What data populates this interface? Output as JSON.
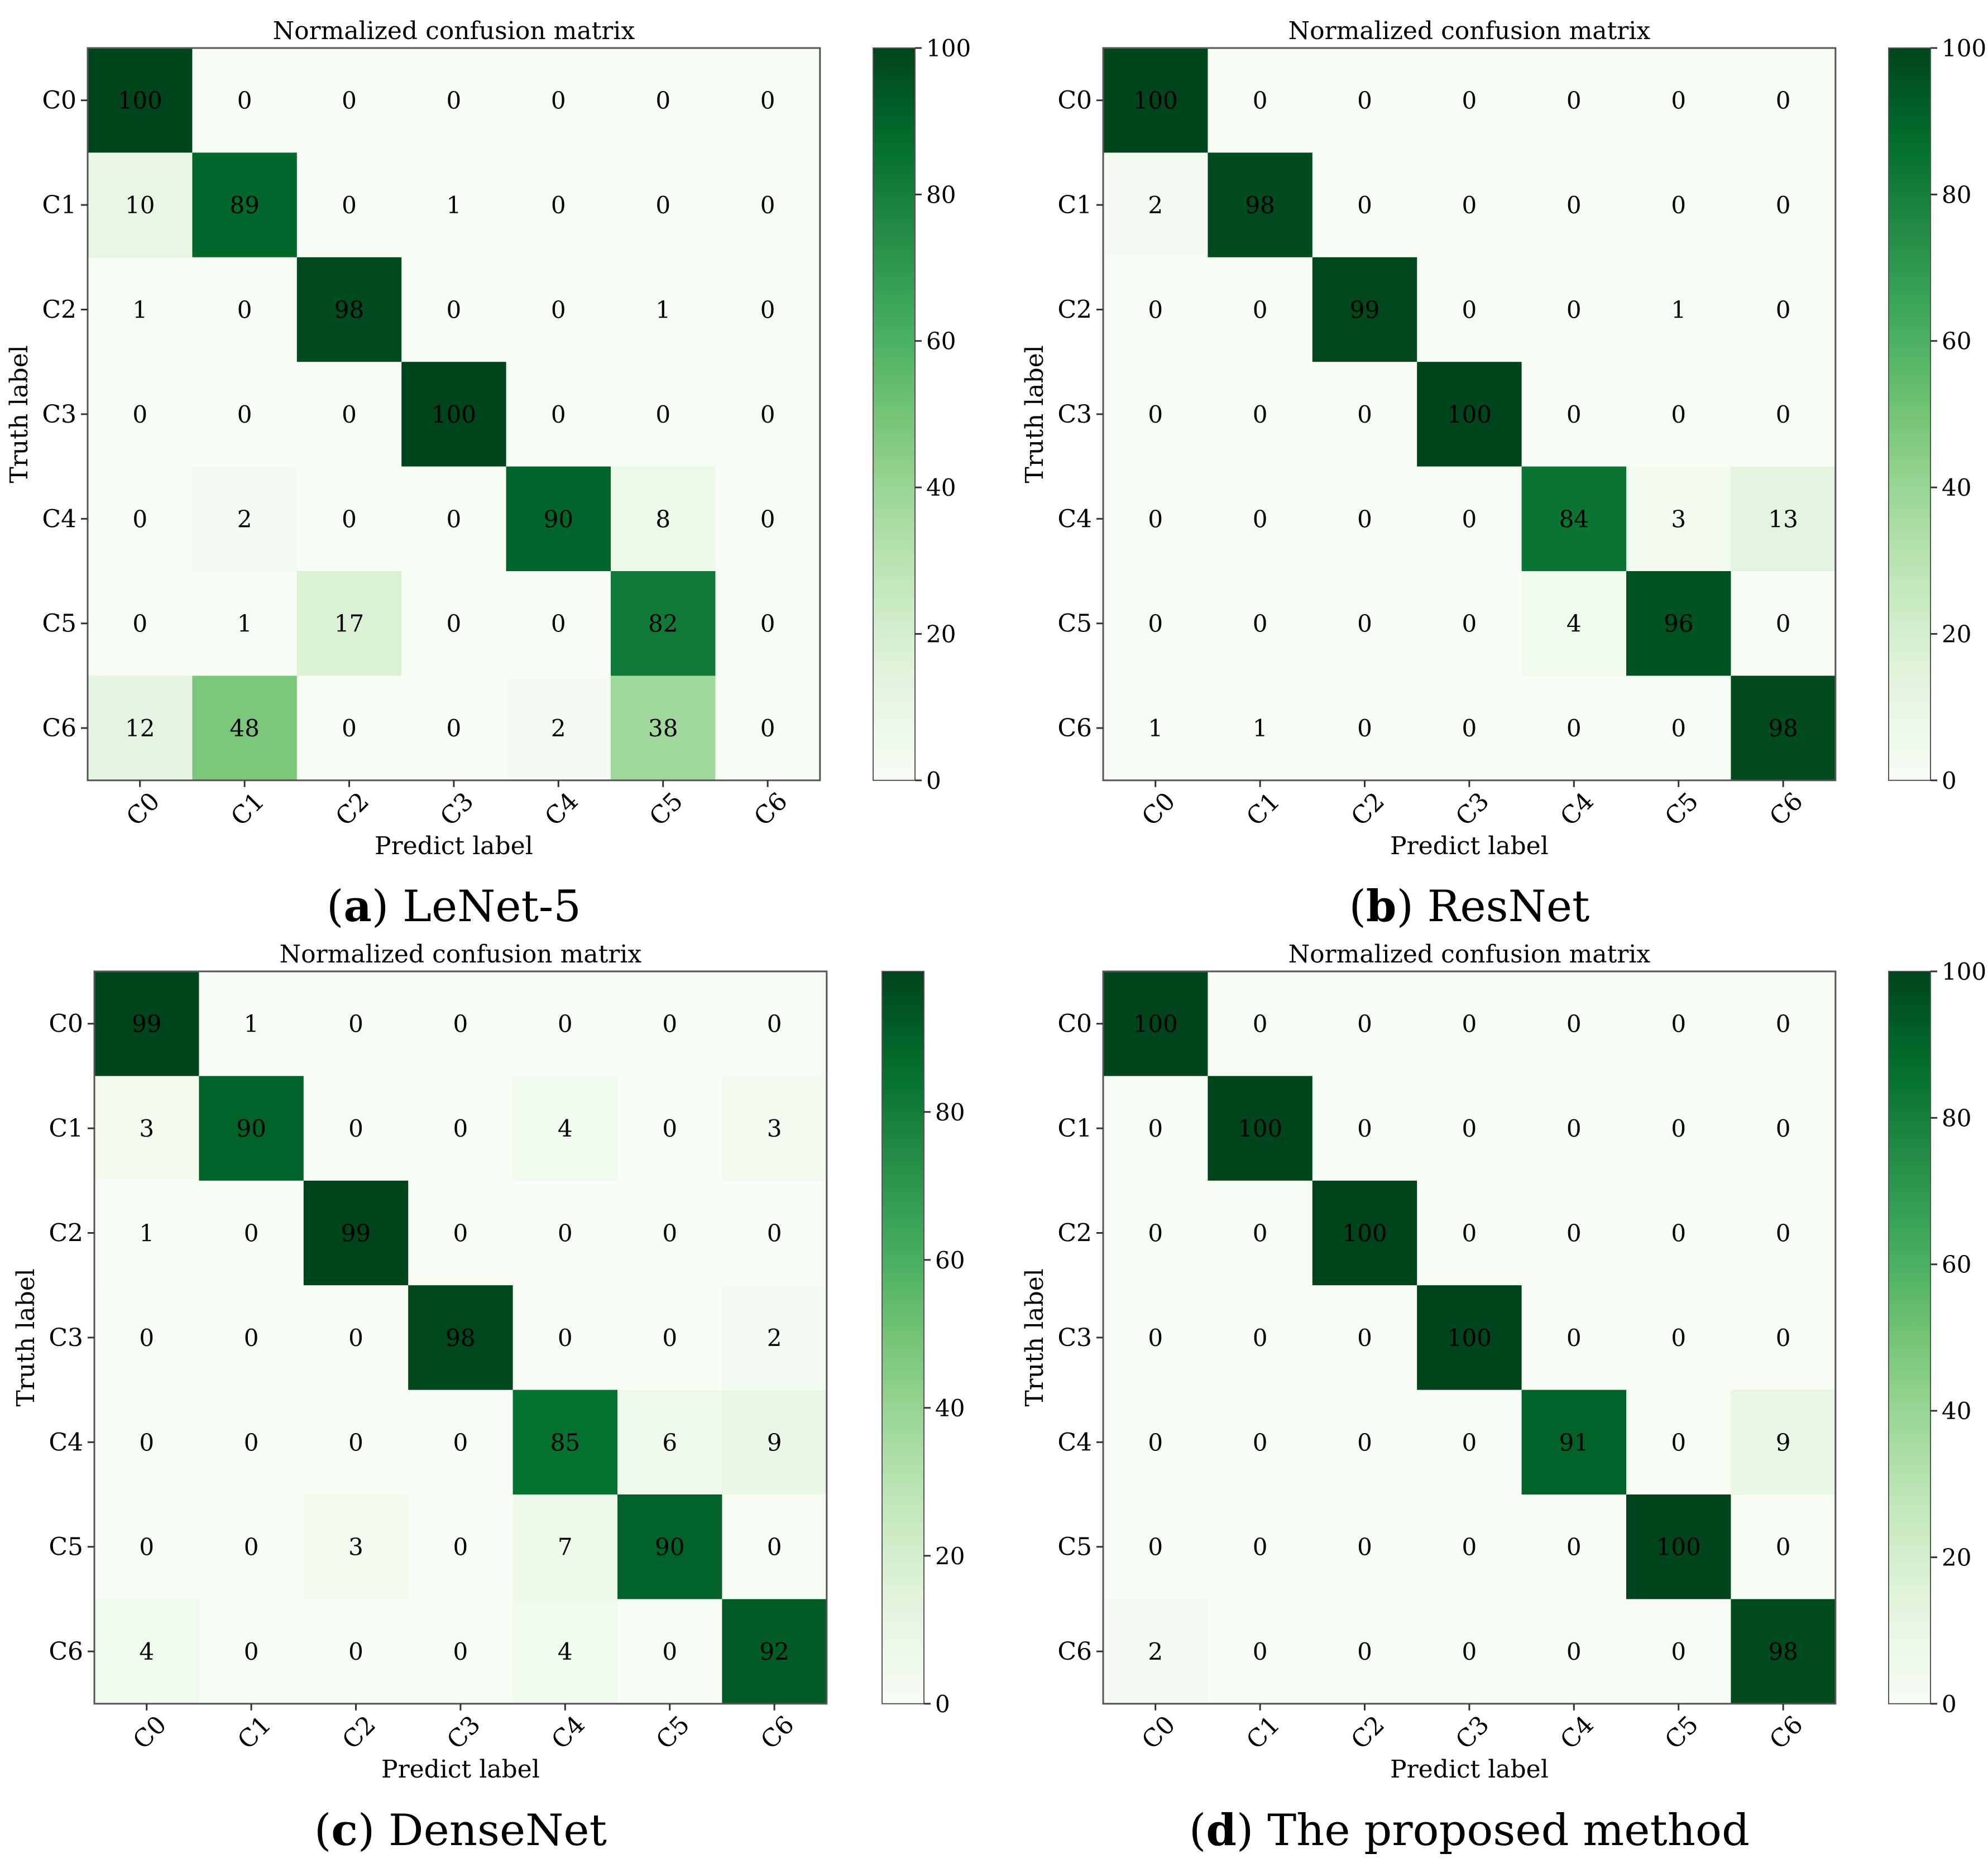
{
  "colors": {
    "scale": [
      "#f7fcf5",
      "#e5f5e0",
      "#c7e9c0",
      "#a1d99b",
      "#74c476",
      "#41ab5d",
      "#238b45",
      "#006d2c",
      "#00441b"
    ],
    "axis": "#555555",
    "text_dark": "#000000",
    "text_light": "#ffffff"
  },
  "chart_data": [
    {
      "type": "heatmap",
      "panel": "a",
      "panel_caption": "LeNet-5",
      "title": "Normalized confusion matrix",
      "xlabel": "Predict label",
      "ylabel": "Truth label",
      "x_categories": [
        "C0",
        "C1",
        "C2",
        "C3",
        "C4",
        "C5",
        "C6"
      ],
      "y_categories": [
        "C0",
        "C1",
        "C2",
        "C3",
        "C4",
        "C5",
        "C6"
      ],
      "values": [
        [
          100,
          0,
          0,
          0,
          0,
          0,
          0
        ],
        [
          10,
          89,
          0,
          1,
          0,
          0,
          0
        ],
        [
          1,
          0,
          98,
          0,
          0,
          1,
          0
        ],
        [
          0,
          0,
          0,
          100,
          0,
          0,
          0
        ],
        [
          0,
          2,
          0,
          0,
          90,
          8,
          0
        ],
        [
          0,
          1,
          17,
          0,
          0,
          82,
          0
        ],
        [
          12,
          48,
          0,
          0,
          2,
          38,
          0
        ]
      ],
      "colorbar": {
        "vmin": 0,
        "vmax": 100,
        "ticks": [
          0,
          20,
          40,
          60,
          80,
          100
        ]
      }
    },
    {
      "type": "heatmap",
      "panel": "b",
      "panel_caption": "ResNet",
      "title": "Normalized confusion matrix",
      "xlabel": "Predict label",
      "ylabel": "Truth label",
      "x_categories": [
        "C0",
        "C1",
        "C2",
        "C3",
        "C4",
        "C5",
        "C6"
      ],
      "y_categories": [
        "C0",
        "C1",
        "C2",
        "C3",
        "C4",
        "C5",
        "C6"
      ],
      "values": [
        [
          100,
          0,
          0,
          0,
          0,
          0,
          0
        ],
        [
          2,
          98,
          0,
          0,
          0,
          0,
          0
        ],
        [
          0,
          0,
          99,
          0,
          0,
          1,
          0
        ],
        [
          0,
          0,
          0,
          100,
          0,
          0,
          0
        ],
        [
          0,
          0,
          0,
          0,
          84,
          3,
          13
        ],
        [
          0,
          0,
          0,
          0,
          4,
          96,
          0
        ],
        [
          1,
          1,
          0,
          0,
          0,
          0,
          98
        ]
      ],
      "colorbar": {
        "vmin": 0,
        "vmax": 100,
        "ticks": [
          0,
          20,
          40,
          60,
          80,
          100
        ]
      }
    },
    {
      "type": "heatmap",
      "panel": "c",
      "panel_caption": "DenseNet",
      "title": "Normalized confusion matrix",
      "xlabel": "Predict label",
      "ylabel": "Truth label",
      "x_categories": [
        "C0",
        "C1",
        "C2",
        "C3",
        "C4",
        "C5",
        "C6"
      ],
      "y_categories": [
        "C0",
        "C1",
        "C2",
        "C3",
        "C4",
        "C5",
        "C6"
      ],
      "values": [
        [
          99,
          1,
          0,
          0,
          0,
          0,
          0
        ],
        [
          3,
          90,
          0,
          0,
          4,
          0,
          3
        ],
        [
          1,
          0,
          99,
          0,
          0,
          0,
          0
        ],
        [
          0,
          0,
          0,
          98,
          0,
          0,
          2
        ],
        [
          0,
          0,
          0,
          0,
          85,
          6,
          9
        ],
        [
          0,
          0,
          3,
          0,
          7,
          90,
          0
        ],
        [
          4,
          0,
          0,
          0,
          4,
          0,
          92
        ]
      ],
      "colorbar": {
        "vmin": 0,
        "vmax": 99,
        "ticks": [
          0,
          20,
          40,
          60,
          80
        ]
      }
    },
    {
      "type": "heatmap",
      "panel": "d",
      "panel_caption": "The proposed method",
      "title": "Normalized confusion matrix",
      "xlabel": "Predict label",
      "ylabel": "Truth label",
      "x_categories": [
        "C0",
        "C1",
        "C2",
        "C3",
        "C4",
        "C5",
        "C6"
      ],
      "y_categories": [
        "C0",
        "C1",
        "C2",
        "C3",
        "C4",
        "C5",
        "C6"
      ],
      "values": [
        [
          100,
          0,
          0,
          0,
          0,
          0,
          0
        ],
        [
          0,
          100,
          0,
          0,
          0,
          0,
          0
        ],
        [
          0,
          0,
          100,
          0,
          0,
          0,
          0
        ],
        [
          0,
          0,
          0,
          100,
          0,
          0,
          0
        ],
        [
          0,
          0,
          0,
          0,
          91,
          0,
          9
        ],
        [
          0,
          0,
          0,
          0,
          0,
          100,
          0
        ],
        [
          2,
          0,
          0,
          0,
          0,
          0,
          98
        ]
      ],
      "colorbar": {
        "vmin": 0,
        "vmax": 100,
        "ticks": [
          0,
          20,
          40,
          60,
          80,
          100
        ]
      }
    }
  ]
}
